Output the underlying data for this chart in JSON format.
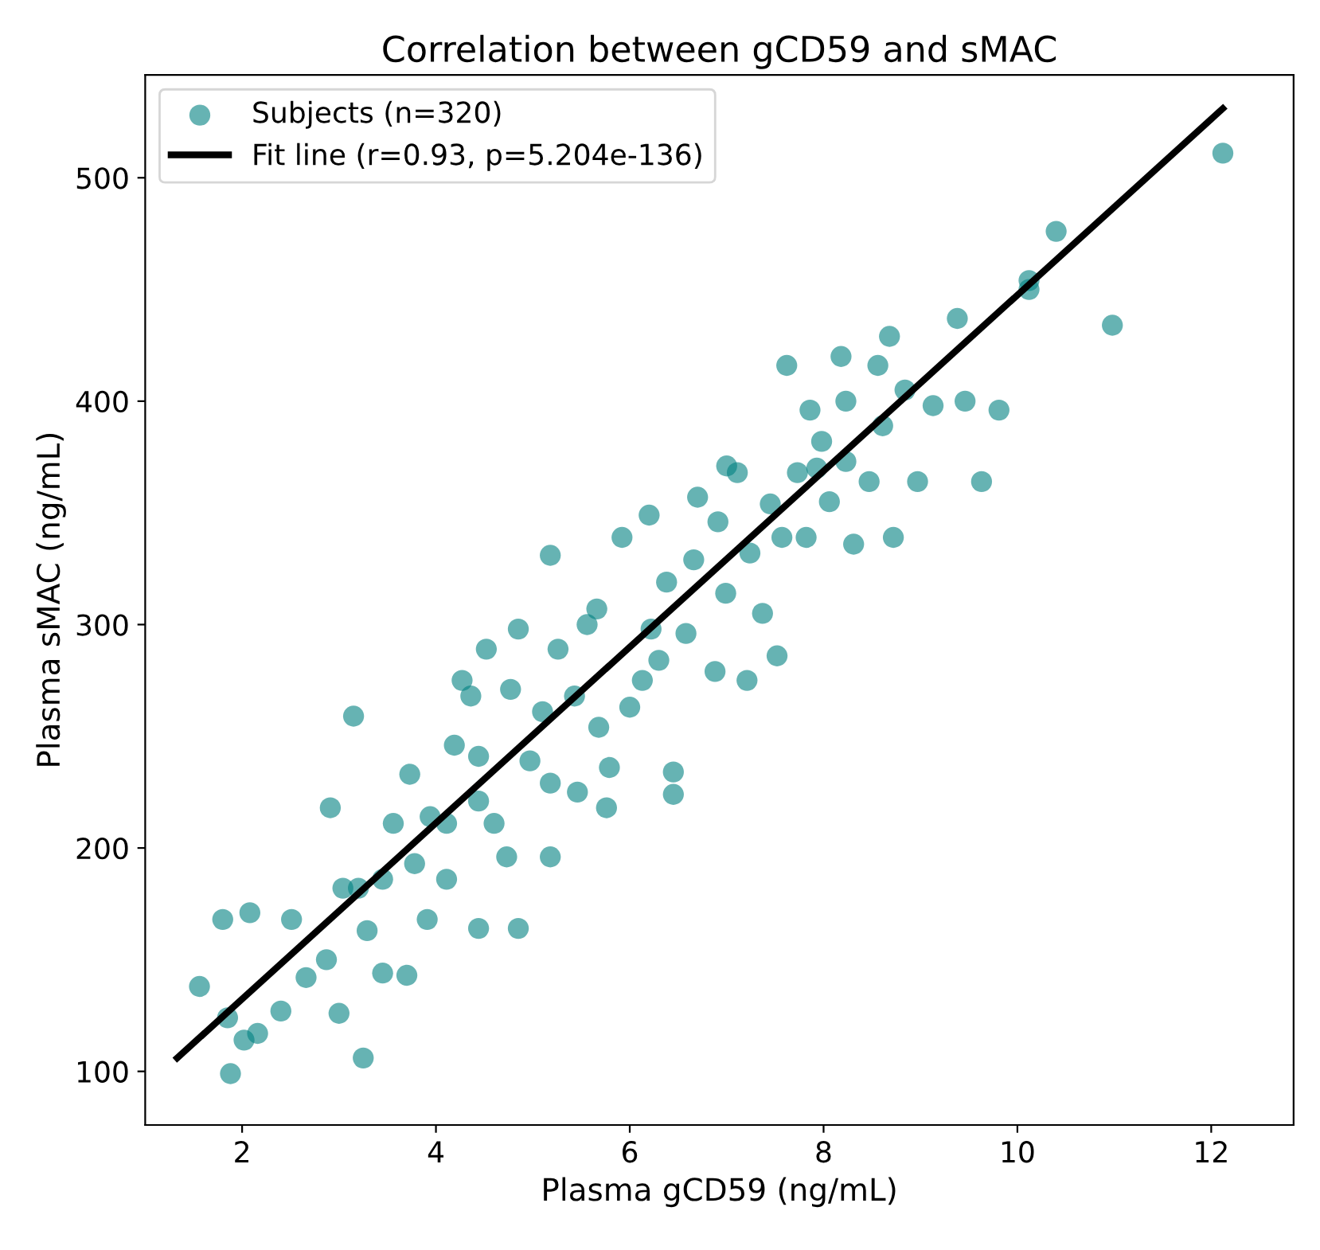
{
  "chart_data": {
    "type": "scatter",
    "title": "Correlation between gCD59 and sMAC",
    "xlabel": "Plasma gCD59 (ng/mL)",
    "ylabel": "Plasma sMAC (ng/mL)",
    "xlim": [
      1.0,
      12.85
    ],
    "ylim": [
      76,
      546
    ],
    "xticks": [
      2,
      4,
      6,
      8,
      10,
      12
    ],
    "yticks": [
      100,
      200,
      300,
      400,
      500
    ],
    "grid": false,
    "legend": "top left",
    "series": [
      {
        "name": "Subjects (n=320)",
        "marker": "circle",
        "color": "#008080",
        "x": [
          1.56,
          1.88,
          1.85,
          2.02,
          1.8,
          2.08,
          2.51,
          2.91,
          3.15,
          3.0,
          3.25,
          2.16,
          2.4,
          2.66,
          2.87,
          3.04,
          3.29,
          3.45,
          3.56,
          3.73,
          3.94,
          4.19,
          4.36,
          4.44,
          3.7,
          3.91,
          4.11,
          4.44,
          4.85,
          4.73,
          4.6,
          4.85,
          4.77,
          5.1,
          5.26,
          5.43,
          5.66,
          5.18,
          5.76,
          5.18,
          5.79,
          6.0,
          6.13,
          6.2,
          6.38,
          6.45,
          6.45,
          6.22,
          6.66,
          6.99,
          6.91,
          7.11,
          7.24,
          7.37,
          7.52,
          7.57,
          7.62,
          7.73,
          7.86,
          7.98,
          8.06,
          8.18,
          8.23,
          8.31,
          8.47,
          8.61,
          8.68,
          8.72,
          8.84,
          8.97,
          9.13,
          9.38,
          9.46,
          9.63,
          9.81,
          10.12,
          10.12,
          10.4,
          10.98,
          12.12,
          5.46,
          4.27,
          4.52,
          5.56,
          5.92,
          6.58,
          6.88,
          7.21,
          7.45,
          7.82,
          7.93,
          8.23,
          8.56,
          3.45,
          3.2,
          3.78,
          4.11,
          4.97,
          5.18,
          4.44,
          5.68,
          6.3,
          6.7,
          7.0
        ],
        "values": [
          138,
          99,
          124,
          114,
          168,
          171,
          168,
          218,
          259,
          126,
          106,
          117,
          127,
          142,
          150,
          182,
          163,
          186,
          211,
          233,
          214,
          246,
          268,
          241,
          143,
          168,
          186,
          164,
          164,
          196,
          211,
          298,
          271,
          261,
          289,
          268,
          307,
          331,
          218,
          229,
          236,
          263,
          275,
          349,
          319,
          234,
          224,
          298,
          329,
          314,
          346,
          368,
          332,
          305,
          286,
          339,
          416,
          368,
          396,
          382,
          355,
          420,
          400,
          336,
          364,
          389,
          429,
          339,
          405,
          364,
          398,
          437,
          400,
          364,
          396,
          454,
          450,
          476,
          434,
          511,
          225,
          275,
          289,
          300,
          339,
          296,
          279,
          275,
          354,
          339,
          370,
          373,
          416,
          144,
          182,
          193,
          211,
          239,
          196,
          221,
          254,
          284,
          357,
          371
        ]
      },
      {
        "name": "Fit line (r=0.93, p=5.204e-136)",
        "type": "line",
        "color": "#000000",
        "x": [
          1.33,
          12.12
        ],
        "values": [
          106,
          531
        ]
      }
    ]
  }
}
